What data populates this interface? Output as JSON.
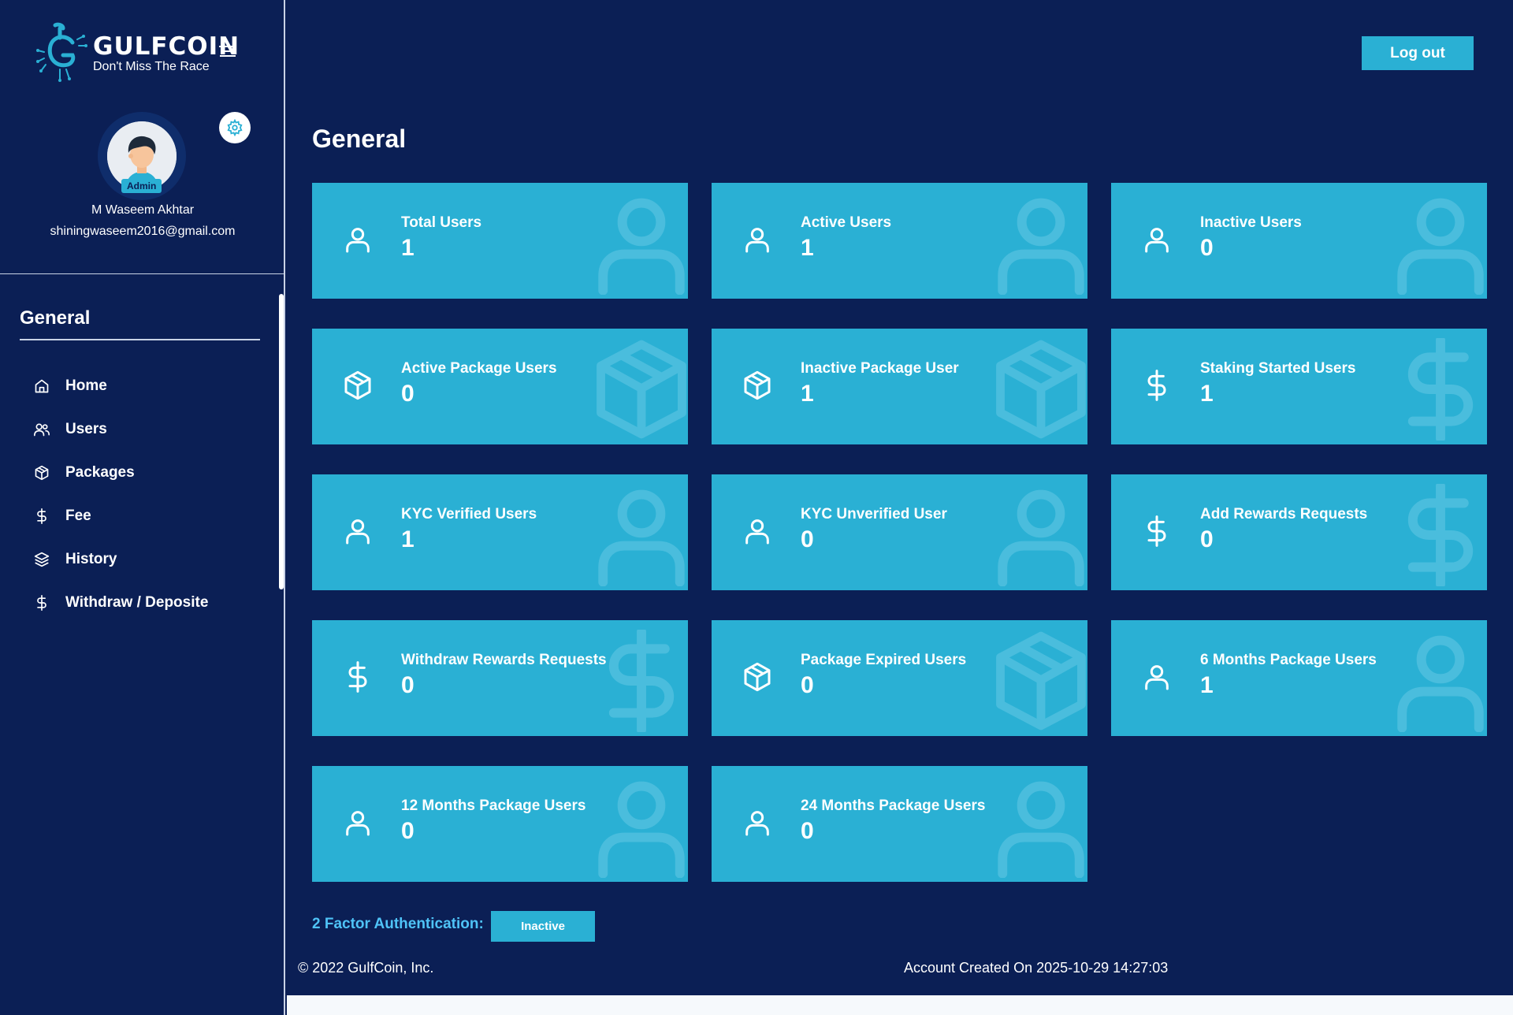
{
  "brand": {
    "name": "GULFCOIN",
    "tagline": "Don't Miss The Race"
  },
  "profile": {
    "badge": "Admin",
    "name": "M Waseem Akhtar",
    "email": "shiningwaseem2016@gmail.com"
  },
  "sidebar": {
    "heading": "General",
    "items": [
      {
        "label": "Home",
        "icon": "home-icon"
      },
      {
        "label": "Users",
        "icon": "users-icon"
      },
      {
        "label": "Packages",
        "icon": "package-icon"
      },
      {
        "label": "Fee",
        "icon": "dollar-icon"
      },
      {
        "label": "History",
        "icon": "layers-icon"
      },
      {
        "label": "Withdraw / Deposite",
        "icon": "dollar-icon"
      }
    ]
  },
  "header": {
    "logout_label": "Log out"
  },
  "main": {
    "title": "General",
    "cards": [
      {
        "label": "Total Users",
        "value": "1",
        "icon": "user-icon"
      },
      {
        "label": "Active Users",
        "value": "1",
        "icon": "user-icon"
      },
      {
        "label": "Inactive Users",
        "value": "0",
        "icon": "user-icon"
      },
      {
        "label": "Active Package Users",
        "value": "0",
        "icon": "package-icon"
      },
      {
        "label": "Inactive Package User",
        "value": "1",
        "icon": "package-icon"
      },
      {
        "label": "Staking Started Users",
        "value": "1",
        "icon": "dollar-icon"
      },
      {
        "label": "KYC Verified Users",
        "value": "1",
        "icon": "user-icon"
      },
      {
        "label": "KYC Unverified User",
        "value": "0",
        "icon": "user-icon"
      },
      {
        "label": "Add Rewards Requests",
        "value": "0",
        "icon": "dollar-icon"
      },
      {
        "label": "Withdraw Rewards Requests",
        "value": "0",
        "icon": "dollar-icon"
      },
      {
        "label": "Package Expired Users",
        "value": "0",
        "icon": "package-icon"
      },
      {
        "label": "6 Months Package Users",
        "value": "1",
        "icon": "user-icon"
      },
      {
        "label": "12 Months Package Users",
        "value": "0",
        "icon": "user-icon"
      },
      {
        "label": "24 Months Package Users",
        "value": "0",
        "icon": "user-icon"
      }
    ]
  },
  "two_factor": {
    "label": "2 Factor Authentication:",
    "status": "Inactive"
  },
  "footer": {
    "copyright": "© 2022 GulfCoin, Inc.",
    "account_created": "Account Created On 2025-10-29 14:27:03"
  },
  "colors": {
    "background": "#0b1f55",
    "card": "#2ab0d4",
    "accent_text": "#4fc3f7"
  }
}
